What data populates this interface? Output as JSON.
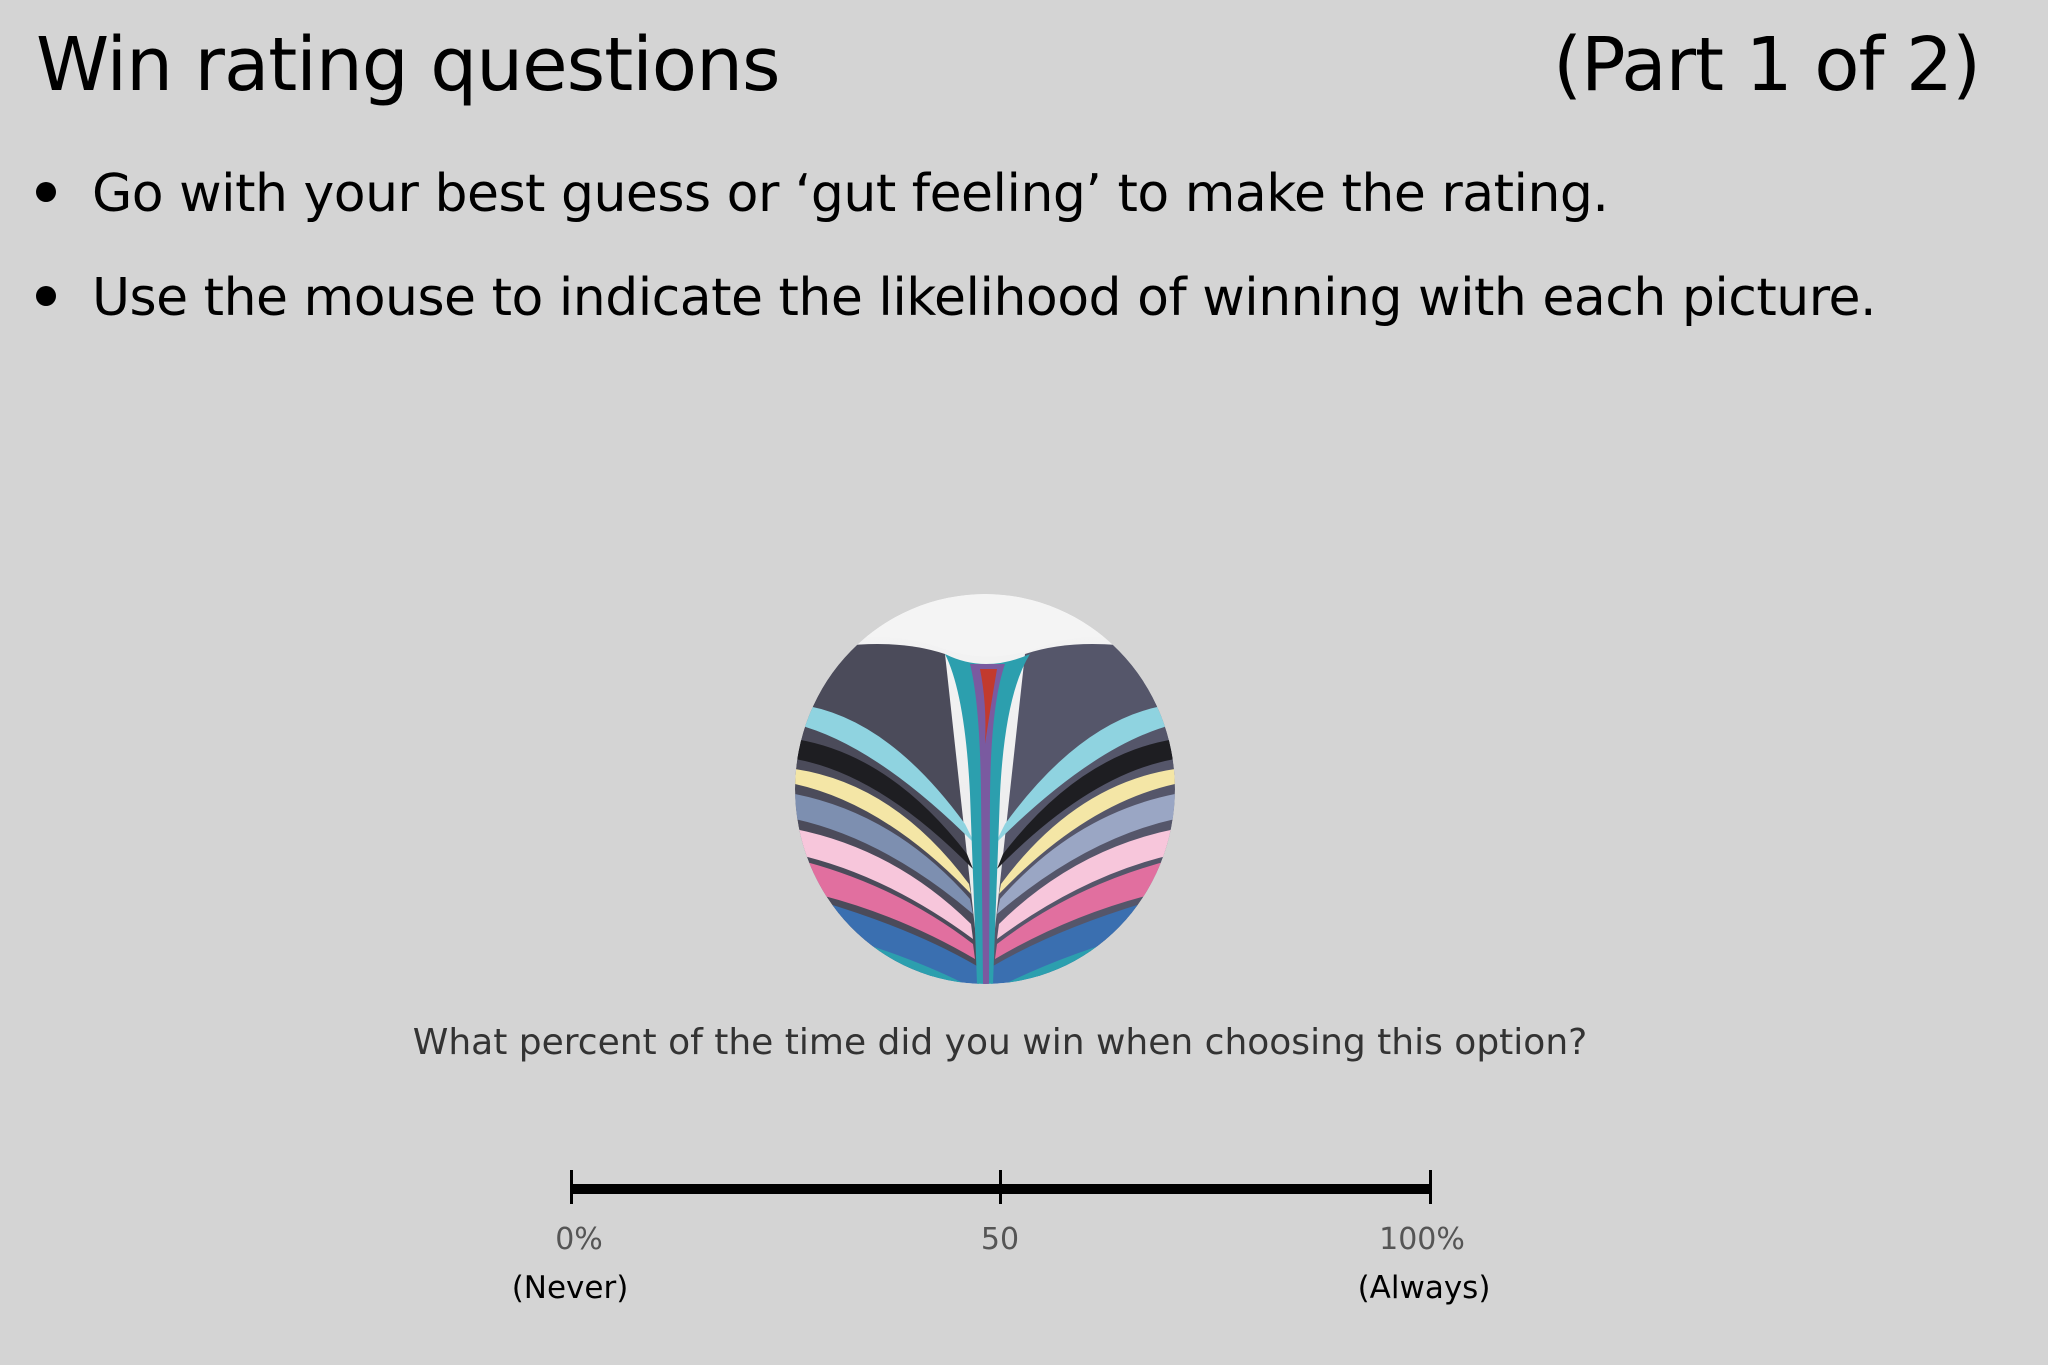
{
  "slide": {
    "title": "Win rating questions",
    "part": "(Part 1 of 2)"
  },
  "bullets": [
    "Go with your best guess or ‘gut feeling’ to make the rating.",
    "Use the mouse to indicate the likelihood of winning with each picture."
  ],
  "question": "What percent of the time did you win when choosing this option?",
  "scale": {
    "ticks": [
      {
        "label": "0%",
        "anchor": "(Never)"
      },
      {
        "label": "50",
        "anchor": ""
      },
      {
        "label": "100%",
        "anchor": "(Always)"
      }
    ]
  },
  "stimulus": {
    "icon": "abstract-paint-pour-image",
    "colors": [
      "#f2f2f2",
      "#4b4b5a",
      "#2c9fae",
      "#f2a9c7",
      "#3a6fb0",
      "#e16f9f",
      "#c23a2e",
      "#7a5aa0"
    ]
  }
}
